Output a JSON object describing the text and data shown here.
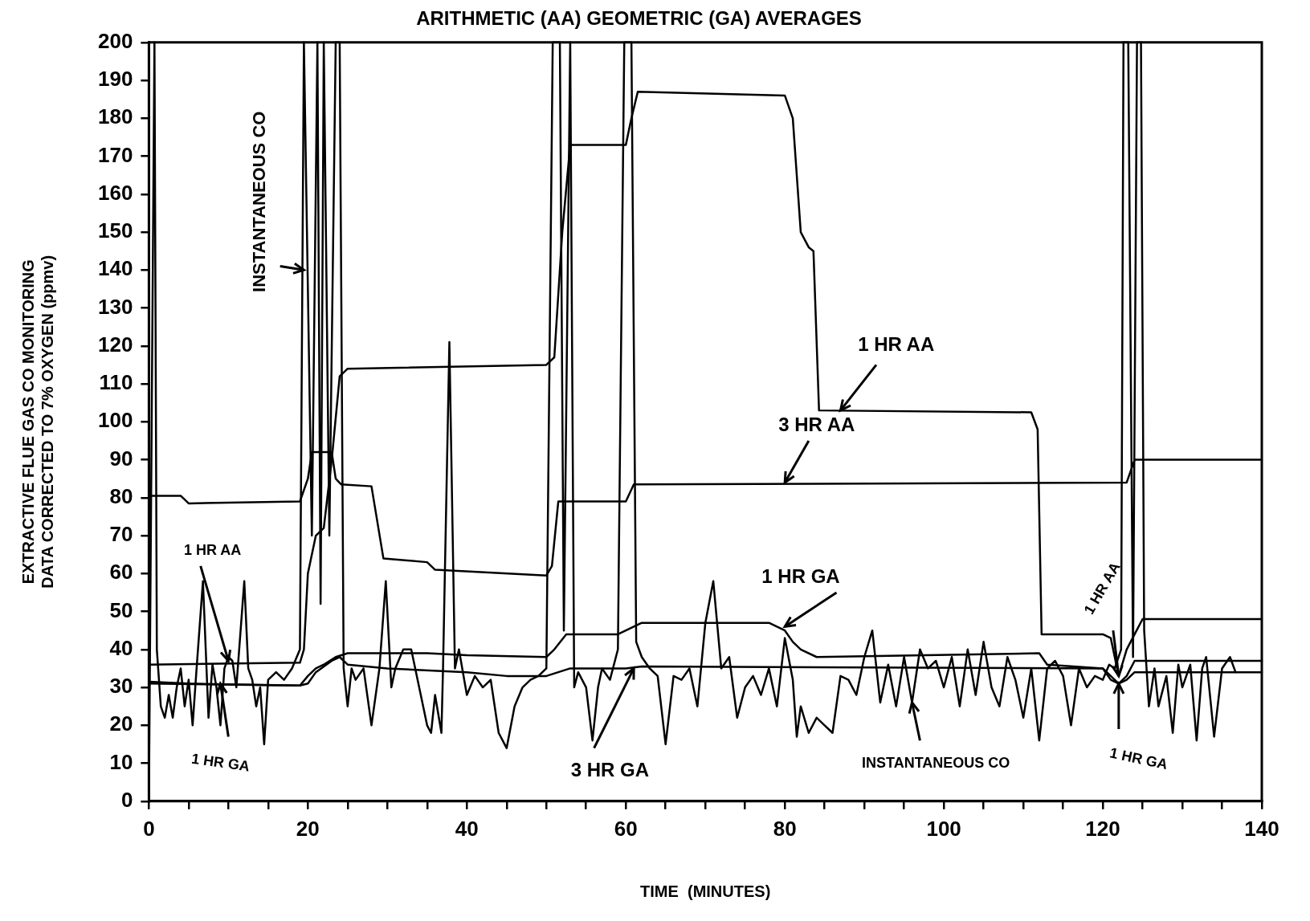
{
  "chart_data": {
    "type": "line",
    "title": "ARITHMETIC (AA) GEOMETRIC (GA) AVERAGES",
    "xlabel": "TIME  (MINUTES)",
    "ylabel": "EXTRACTIVE FLUE GAS CO MONITORING\nDATA CORRECTED TO 7% OXYGEN (ppmv)",
    "xlim": [
      0,
      140
    ],
    "ylim": [
      0,
      200
    ],
    "xticks": [
      0,
      {
        "value": 5,
        "label": null
      },
      {
        "value": 10,
        "label": null
      },
      {
        "value": 15,
        "label": null
      },
      20,
      {
        "value": 25,
        "label": null
      },
      {
        "value": 30,
        "label": null
      },
      {
        "value": 35,
        "label": null
      },
      40,
      {
        "value": 45,
        "label": null
      },
      {
        "value": 50,
        "label": null
      },
      {
        "value": 55,
        "label": null
      },
      60,
      {
        "value": 65,
        "label": null
      },
      {
        "value": 70,
        "label": null
      },
      {
        "value": 75,
        "label": null
      },
      80,
      {
        "value": 85,
        "label": null
      },
      {
        "value": 90,
        "label": null
      },
      {
        "value": 95,
        "label": null
      },
      100,
      {
        "value": 105,
        "label": null
      },
      {
        "value": 110,
        "label": null
      },
      {
        "value": 115,
        "label": null
      },
      120,
      {
        "value": 125,
        "label": null
      },
      {
        "value": 130,
        "label": null
      },
      {
        "value": 135,
        "label": null
      },
      140
    ],
    "yticks": [
      0,
      10,
      20,
      30,
      40,
      50,
      60,
      70,
      80,
      90,
      100,
      110,
      120,
      130,
      140,
      150,
      160,
      170,
      180,
      190,
      200
    ],
    "grid": false,
    "legend": false,
    "marker": "none",
    "line_style": "solid",
    "series": [
      {
        "color": "#000000",
        "x": [
          0,
          0.7,
          1,
          1.5,
          2,
          2.5,
          3,
          3.5,
          4,
          4.5,
          5,
          5.5,
          6,
          6.8,
          7.5,
          8,
          8.5,
          9,
          9.5,
          10,
          10.5,
          11,
          12,
          12.5,
          13,
          13.5,
          14,
          14.5,
          15,
          16,
          17,
          18,
          19,
          19.5,
          20.5,
          21.2,
          21.6,
          22,
          22.7,
          23.5,
          24,
          24.5,
          25,
          25.5,
          26,
          27,
          28,
          29,
          29.8,
          30.5,
          31,
          32,
          33,
          34,
          35,
          35.5,
          36,
          36.8,
          37,
          37.8,
          38.5,
          39,
          40,
          41,
          42,
          43,
          44,
          45,
          46,
          47,
          48,
          49,
          50,
          50.8,
          51.7,
          52.2,
          53,
          53.5,
          54,
          55,
          55.8,
          56.5,
          57,
          58,
          59,
          59.8,
          60.7,
          61.3,
          62,
          63,
          64,
          65,
          66,
          67,
          68,
          69,
          70,
          71,
          72,
          73,
          74,
          75,
          76,
          77,
          78,
          79,
          80,
          81,
          81.5,
          82,
          83,
          84,
          85,
          86,
          87,
          88,
          89,
          90,
          91,
          92,
          93,
          94,
          95,
          96,
          97,
          98,
          99,
          100,
          101,
          102,
          103,
          104,
          105,
          106,
          107,
          108,
          109,
          110,
          111,
          112,
          113,
          114,
          115,
          116,
          117,
          118,
          119,
          120,
          120.8,
          121.5,
          122.3,
          122.6,
          123.2,
          123.8,
          124.3,
          124.8,
          125.2,
          125.8,
          126.5,
          127,
          128,
          128.8,
          129.5,
          130,
          131,
          131.8,
          132.5,
          133,
          134,
          135,
          136,
          136.7
        ],
        "values": [
          0,
          200,
          40,
          25,
          22,
          28,
          22,
          30,
          35,
          25,
          32,
          20,
          35,
          58,
          22,
          36,
          30,
          20,
          35,
          38,
          37,
          30,
          58,
          35,
          32,
          25,
          30,
          15,
          32,
          34,
          32,
          35,
          40,
          200,
          70,
          200,
          52,
          200,
          70,
          200,
          200,
          35,
          25,
          35,
          32,
          35,
          20,
          35,
          58,
          30,
          35,
          40,
          40,
          30,
          20,
          18,
          28,
          18,
          35,
          121,
          35,
          40,
          28,
          33,
          30,
          32,
          18,
          14,
          25,
          30,
          32,
          33,
          35,
          200,
          200,
          45,
          200,
          30,
          34,
          30,
          16,
          30,
          35,
          32,
          40,
          200,
          200,
          42,
          38,
          35,
          33,
          15,
          33,
          32,
          35,
          25,
          47,
          58,
          35,
          38,
          22,
          30,
          33,
          28,
          35,
          25,
          43,
          32,
          17,
          25,
          18,
          22,
          20,
          18,
          33,
          32,
          28,
          38,
          45,
          26,
          36,
          25,
          38,
          26,
          40,
          35,
          37,
          30,
          38,
          25,
          40,
          28,
          42,
          30,
          25,
          38,
          32,
          22,
          35,
          16,
          35,
          37,
          33,
          20,
          35,
          30,
          33,
          32,
          36,
          35,
          40,
          200,
          200,
          38,
          200,
          200,
          45,
          25,
          35,
          25,
          33,
          18,
          36,
          30,
          36,
          16,
          35,
          38,
          17,
          35,
          38,
          34
        ]
      },
      {
        "color": "#000000",
        "x": [
          0,
          19,
          19.5,
          20,
          21,
          22,
          23,
          24,
          25,
          50,
          51,
          52,
          53,
          60,
          60.7,
          61.5,
          80,
          81,
          82,
          83,
          83.6,
          84.3,
          111,
          111.8,
          112.3,
          120,
          121,
          122,
          123,
          124,
          125,
          140
        ],
        "values": [
          36,
          36.5,
          40,
          60,
          70,
          72,
          90,
          112,
          114,
          115,
          117,
          150,
          173,
          173,
          180,
          187,
          186,
          180,
          150,
          146,
          145,
          103,
          102.5,
          98,
          44,
          44,
          43,
          33,
          40,
          44,
          48,
          48
        ]
      },
      {
        "color": "#000000",
        "x": [
          0,
          4,
          5,
          19,
          20,
          20.5,
          23,
          23.5,
          24.2,
          28,
          29.5,
          35,
          36,
          50,
          50.7,
          51.5,
          60,
          61,
          123,
          124,
          140
        ],
        "values": [
          80.5,
          80.5,
          78.5,
          79,
          85,
          92,
          92,
          85,
          83.5,
          83,
          64,
          63,
          61,
          59.5,
          62,
          79,
          79,
          83.5,
          84,
          90,
          90
        ]
      },
      {
        "color": "#000000",
        "x": [
          0,
          19,
          20,
          21,
          22,
          23.5,
          25,
          35,
          40,
          50,
          51,
          52.5,
          59,
          60,
          62,
          78,
          80,
          81,
          82,
          84,
          112,
          113,
          120,
          121,
          122,
          123,
          124,
          140
        ],
        "values": [
          31,
          30.5,
          33,
          35,
          36,
          38,
          39,
          39,
          38.5,
          38,
          40,
          44,
          44,
          45,
          47,
          47,
          45,
          42,
          40,
          38,
          39,
          36,
          35,
          33,
          31,
          33,
          37,
          37
        ]
      },
      {
        "color": "#000000",
        "x": [
          0,
          5,
          19,
          20,
          21,
          23,
          24,
          25,
          30,
          40,
          45,
          50,
          53,
          60,
          62,
          120,
          121,
          122,
          123,
          124,
          140
        ],
        "values": [
          31.5,
          31,
          30.5,
          31,
          34,
          37,
          38,
          36,
          35,
          34,
          33,
          33,
          35,
          35,
          35.5,
          35,
          32,
          31,
          32,
          34,
          34
        ]
      }
    ],
    "annotations": [
      {
        "text": "INSTANTANEOUS CO",
        "x": 19.5,
        "y": 140
      },
      {
        "text": "1 HR AA",
        "x": 87,
        "y": 103
      },
      {
        "text": "3 HR AA",
        "x": 80,
        "y": 84
      },
      {
        "text": "1 HR GA",
        "x": 80,
        "y": 46
      },
      {
        "text": "1 HR AA",
        "x": 10,
        "y": 37
      },
      {
        "text": "1 HR GA",
        "x": 9,
        "y": 31
      },
      {
        "text": "3 HR GA",
        "x": 61,
        "y": 35
      },
      {
        "text": "INSTANTANEOUS CO",
        "x": 96,
        "y": 26
      },
      {
        "text": "1 HR AA",
        "x": 122,
        "y": 33
      },
      {
        "text": "1 HR GA",
        "x": 122,
        "y": 31
      }
    ]
  }
}
